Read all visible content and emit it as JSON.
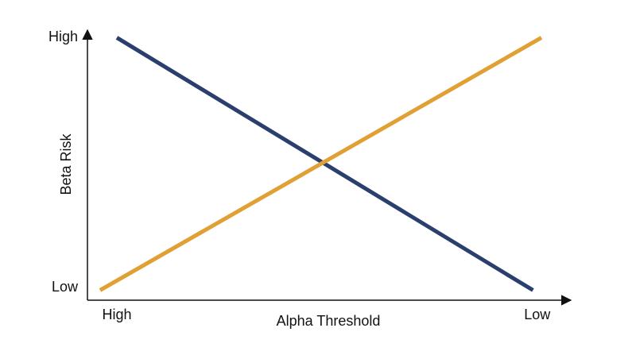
{
  "chart_data": {
    "type": "line",
    "x_label": "Alpha Threshold",
    "y_label": "Beta Risk",
    "xlim": [
      -7,
      108
    ],
    "ylim": [
      -5,
      103
    ],
    "xticks": [
      {
        "value": 0,
        "label": "High"
      },
      {
        "value": 100,
        "label": "Low"
      }
    ],
    "yticks": [
      {
        "value": 0,
        "label": "Low"
      },
      {
        "value": 100,
        "label": "High"
      }
    ],
    "grid": false,
    "series": [
      {
        "color": "#2b3f6e",
        "x": [
          0,
          99
        ],
        "values": [
          100,
          -1
        ]
      },
      {
        "color": "#e0a034",
        "x": [
          -4,
          101
        ],
        "values": [
          -1,
          100
        ]
      }
    ]
  }
}
